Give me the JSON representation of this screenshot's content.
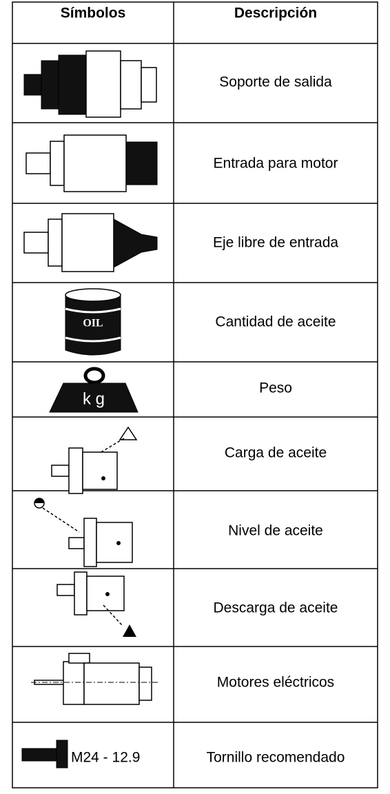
{
  "table": {
    "header": [
      "Símbolos",
      "Descripción"
    ],
    "rows": [
      {
        "description": "Soporte de salida"
      },
      {
        "description": "Entrada para motor"
      },
      {
        "description": "Eje libre de entrada"
      },
      {
        "description": "Cantidad de aceite",
        "symbol_text": "OIL"
      },
      {
        "description": "Peso",
        "symbol_text": "k g"
      },
      {
        "description": "Carga de aceite"
      },
      {
        "description": "Nivel de aceite"
      },
      {
        "description": "Descarga de aceite"
      },
      {
        "description": "Motores eléctricos"
      },
      {
        "description": "Tornillo recomendado",
        "symbol_text": "M24 - 12.9"
      }
    ]
  }
}
